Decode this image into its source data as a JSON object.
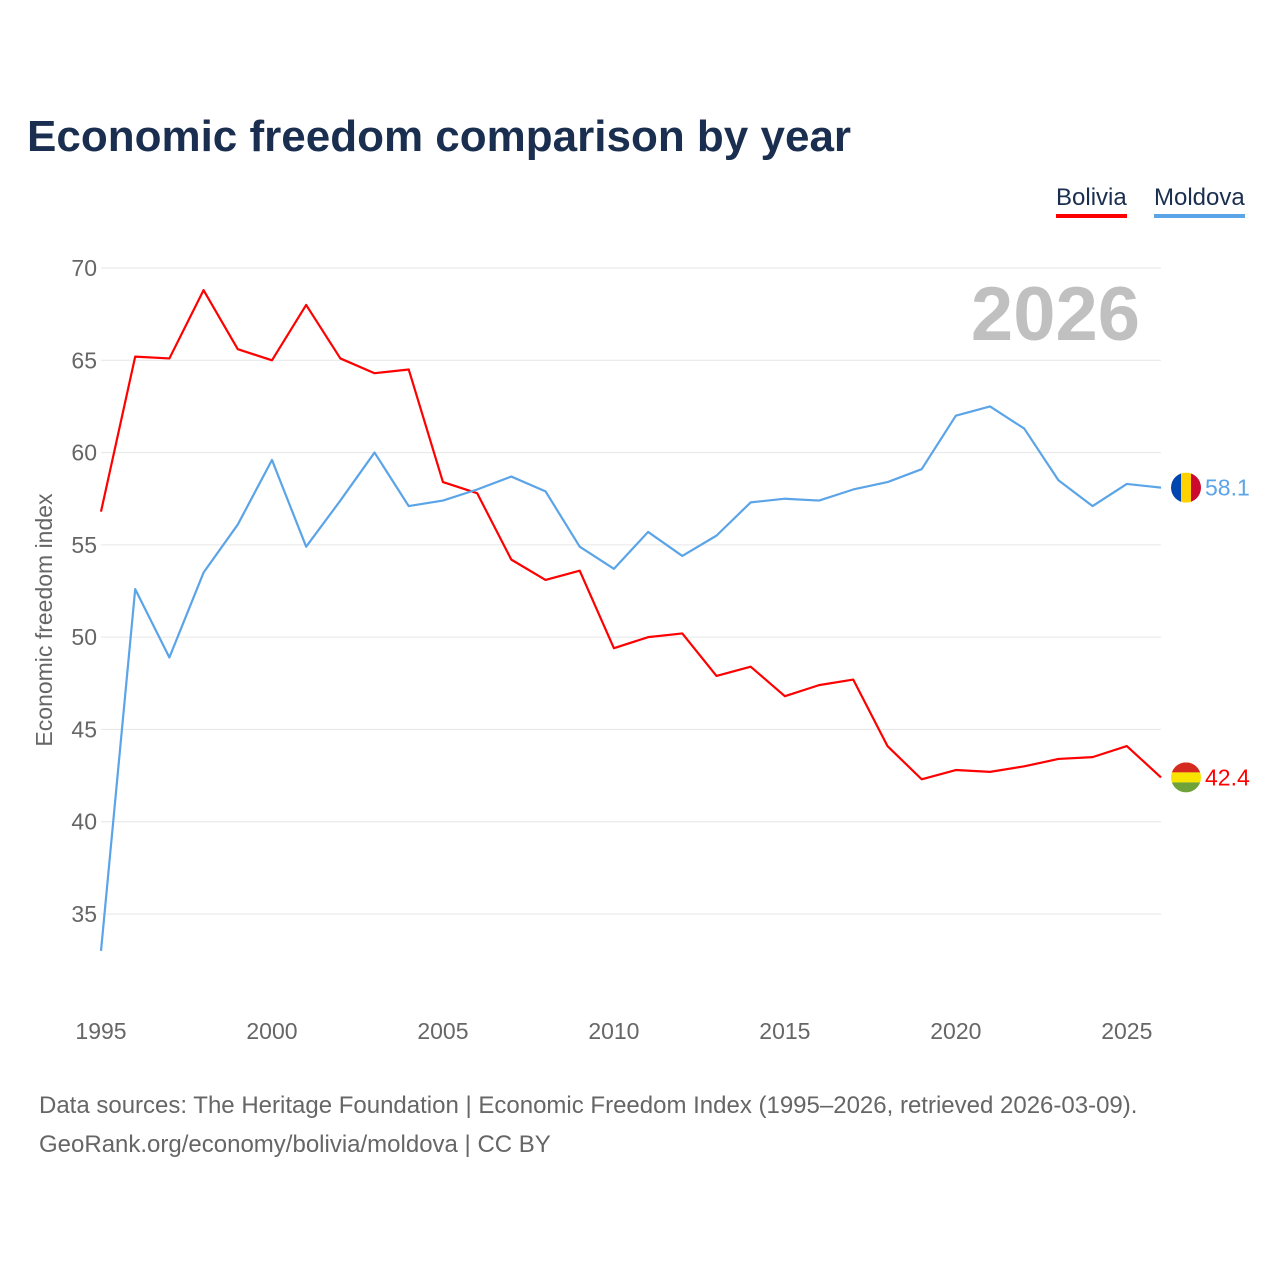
{
  "colors": {
    "bolivia": "#ff0000",
    "moldova": "#5ba4e8",
    "grid": "#e6e6e6",
    "axis_text": "#666666",
    "year_watermark": "#c0c0c0"
  },
  "chart_data": {
    "type": "line",
    "title": "Economic freedom comparison by year",
    "xlabel": "",
    "ylabel": "Economic freedom index",
    "xlim": [
      1995,
      2026
    ],
    "ylim": [
      30,
      70
    ],
    "yticks": [
      35,
      40,
      45,
      50,
      55,
      60,
      65,
      70
    ],
    "xticks": [
      1995,
      2000,
      2005,
      2010,
      2015,
      2020,
      2025
    ],
    "grid": true,
    "legend_position": "top-right",
    "watermark_year": "2026",
    "x": [
      1995,
      1996,
      1997,
      1998,
      1999,
      2000,
      2001,
      2002,
      2003,
      2004,
      2005,
      2006,
      2007,
      2008,
      2009,
      2010,
      2011,
      2012,
      2013,
      2014,
      2015,
      2016,
      2017,
      2018,
      2019,
      2020,
      2021,
      2022,
      2023,
      2024,
      2025,
      2026
    ],
    "series": [
      {
        "name": "Bolivia",
        "color": "#ff0000",
        "end_label": "42.4",
        "values": [
          56.8,
          65.2,
          65.1,
          68.8,
          65.6,
          65.0,
          68.0,
          65.1,
          64.3,
          64.5,
          58.4,
          57.8,
          54.2,
          53.1,
          53.6,
          49.4,
          50.0,
          50.2,
          47.9,
          48.4,
          46.8,
          47.4,
          47.7,
          44.1,
          42.3,
          42.8,
          42.7,
          43.0,
          43.4,
          43.5,
          44.1,
          42.4
        ]
      },
      {
        "name": "Moldova",
        "color": "#5ba4e8",
        "end_label": "58.1",
        "values": [
          33.0,
          52.6,
          48.9,
          53.5,
          56.1,
          59.6,
          54.9,
          57.4,
          60.0,
          57.1,
          57.4,
          58.0,
          58.7,
          57.9,
          54.9,
          53.7,
          55.7,
          54.4,
          55.5,
          57.3,
          57.5,
          57.4,
          58.0,
          58.4,
          59.1,
          62.0,
          62.5,
          61.3,
          58.5,
          57.1,
          58.3,
          58.1
        ]
      }
    ]
  },
  "footer": {
    "line1": "Data sources: The Heritage Foundation | Economic Freedom Index (1995–2026, retrieved 2026-03-09).",
    "line2": "GeoRank.org/economy/bolivia/moldova | CC BY"
  }
}
